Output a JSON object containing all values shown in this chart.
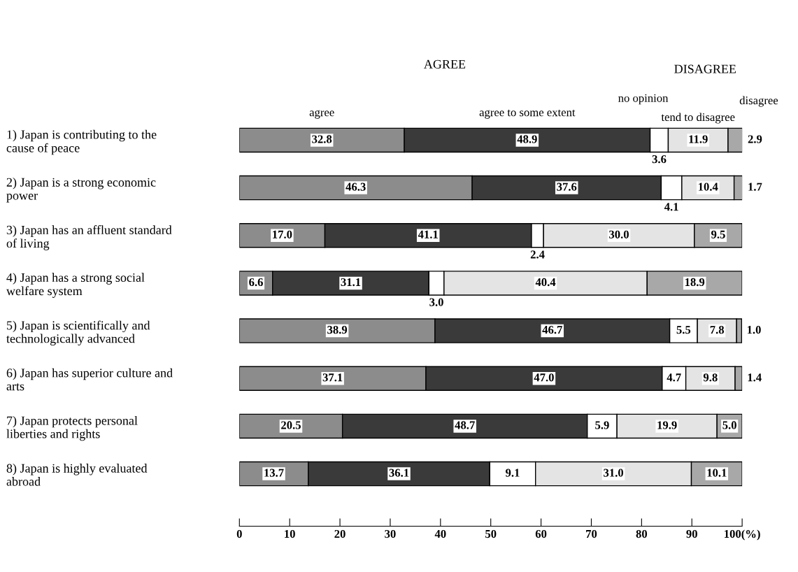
{
  "chart_data": {
    "type": "bar",
    "orientation": "horizontal",
    "stacked": true,
    "categories": [
      "1) Japan is contributing to the\ncause of peace",
      "2) Japan is a strong economic\npower",
      "3) Japan has an affluent standard\nof living",
      "4) Japan has a strong social\nwelfare system",
      "5) Japan is scientifically and\ntechnologically advanced",
      "6) Japan has superior culture and\narts",
      "7) Japan protects personal\nliberties and rights",
      "8) Japan is highly evaluated\nabroad"
    ],
    "series": [
      {
        "name": "agree",
        "color": "#8c8c8c",
        "values": [
          32.8,
          46.3,
          17.0,
          6.6,
          38.9,
          37.1,
          20.5,
          13.7
        ],
        "value_labels": [
          "32.8",
          "46.3",
          "17.0",
          "6.6",
          "38.9",
          "37.1",
          "20.5",
          "13.7"
        ]
      },
      {
        "name": "agree to some extent",
        "color": "#3a3a3a",
        "values": [
          48.9,
          37.6,
          41.1,
          31.1,
          46.7,
          47.0,
          48.7,
          36.1
        ],
        "value_labels": [
          "48.9",
          "37.6",
          "41.1",
          "31.1",
          "46.7",
          "47.0",
          "48.7",
          "36.1"
        ]
      },
      {
        "name": "no opinion",
        "color": "#ffffff",
        "values": [
          3.6,
          4.1,
          2.4,
          3.0,
          5.5,
          4.7,
          5.9,
          9.1
        ],
        "value_labels": [
          "3.6",
          "4.1",
          "2.4",
          "3.0",
          "5.5",
          "4.7",
          "5.9",
          "9.1"
        ]
      },
      {
        "name": "tend to disagree",
        "color": "#e4e4e4",
        "values": [
          11.9,
          10.4,
          30.0,
          40.4,
          7.8,
          9.8,
          19.9,
          31.0
        ],
        "value_labels": [
          "11.9",
          "10.4",
          "30.0",
          "40.4",
          "7.8",
          "9.8",
          "19.9",
          "31.0"
        ]
      },
      {
        "name": "disagree",
        "color": "#a8a8a8",
        "values": [
          2.9,
          1.7,
          9.5,
          18.9,
          1.0,
          1.4,
          5.0,
          10.1
        ],
        "value_labels": [
          "2.9",
          "1.7",
          "9.5",
          "18.9",
          "1.0",
          "1.4",
          "5.0",
          "10.1"
        ]
      }
    ],
    "xlim": [
      0,
      100
    ],
    "xticks": [
      0,
      10,
      20,
      30,
      40,
      50,
      60,
      70,
      80,
      90,
      {
        "value": 100,
        "label": "100(%)"
      }
    ],
    "annotations": [
      "AGREE",
      "DISAGREE"
    ]
  }
}
